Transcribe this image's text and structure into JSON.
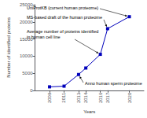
{
  "chart_data": {
    "type": "line",
    "x": [
      2009,
      2011,
      2013,
      2014,
      2016,
      2017,
      2020
    ],
    "values": [
      1000,
      1200,
      4600,
      6500,
      10500,
      18000,
      21500
    ],
    "xlabel": "Years",
    "ylabel": "Number of identified proteins",
    "xlim": [
      2007,
      2022
    ],
    "xticks": [
      2009,
      2011,
      2013,
      2014,
      2016,
      2017,
      2020
    ],
    "ylim": [
      0,
      25000
    ],
    "yticks": [
      0,
      5000,
      10000,
      15000,
      20000,
      25000
    ],
    "color": "#0000bb",
    "marker": "square",
    "grid": false,
    "annotations": [
      {
        "text": "Anno human sperm proteome",
        "x": 2013,
        "y": 4600
      },
      {
        "text": "Average number of proteins identified\nin human cell line",
        "x": 2016,
        "y": 10500
      },
      {
        "text": "MS-based draft of the human proteome",
        "x": 2017,
        "y": 18000
      },
      {
        "text": "UniProtKB (current human proteome)",
        "x": 2020,
        "y": 21500
      }
    ]
  }
}
